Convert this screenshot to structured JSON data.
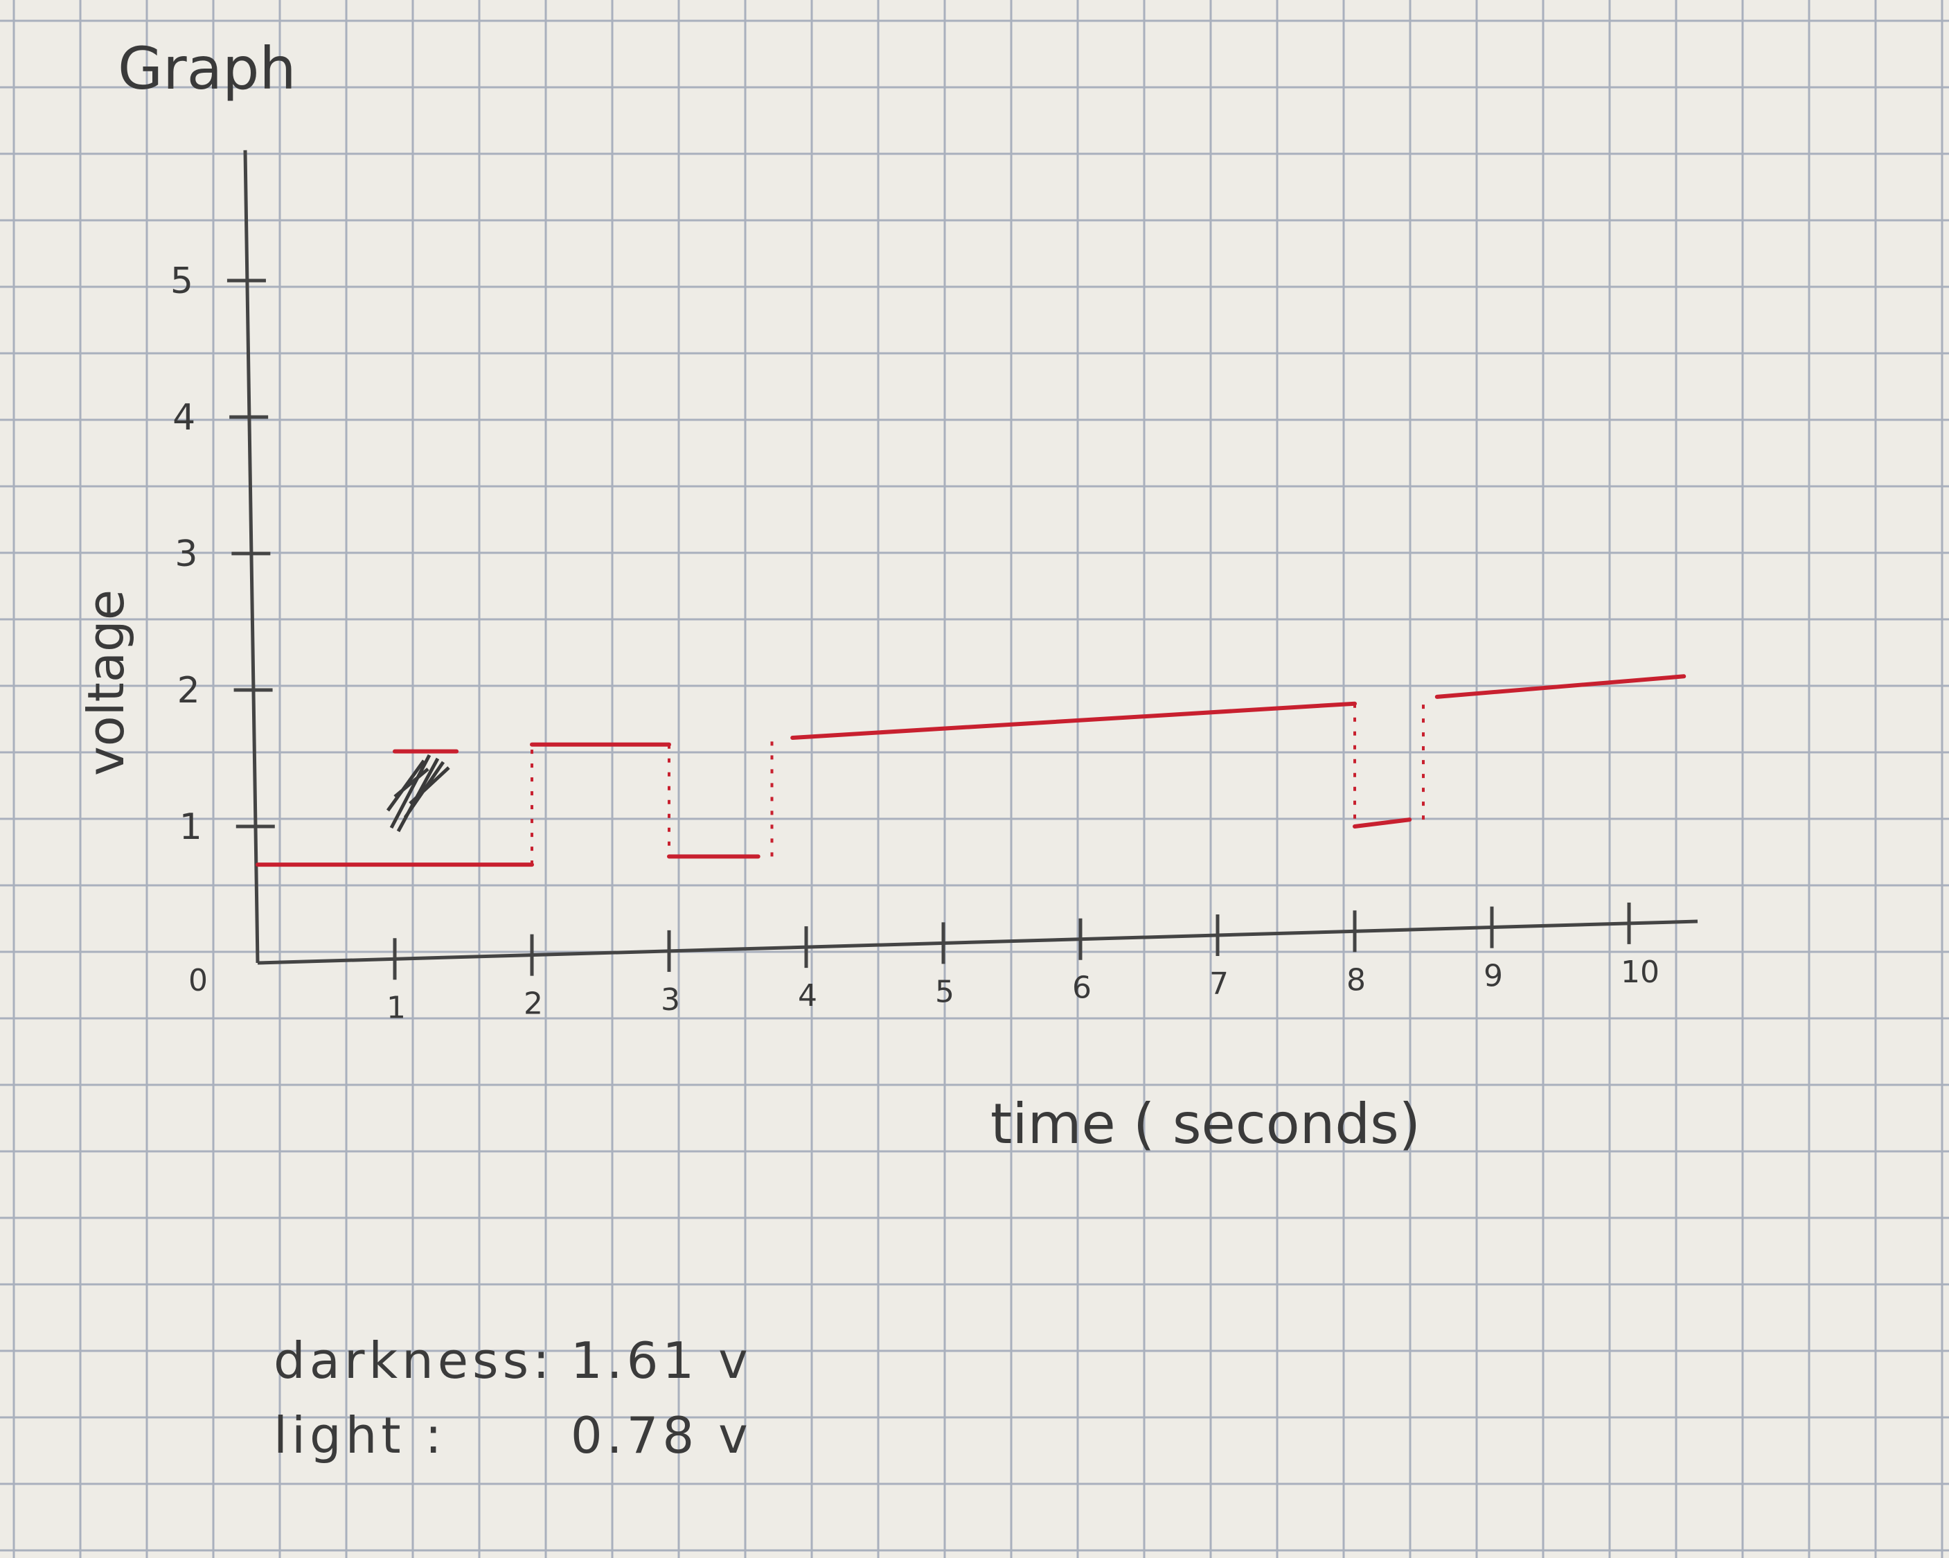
{
  "chart_data": {
    "type": "line",
    "title": "Graph",
    "xlabel": "time ( seconds)",
    "ylabel": "voltage",
    "x_ticks": [
      "0",
      "1",
      "2",
      "3",
      "4",
      "5",
      "6",
      "7",
      "8",
      "9",
      "10"
    ],
    "y_ticks": [
      "1",
      "2",
      "3",
      "4",
      "5"
    ],
    "xlim": [
      0,
      10.5
    ],
    "ylim": [
      0,
      5.6
    ],
    "grid": true,
    "series_color": "#c8202f",
    "segments": [
      {
        "x": [
          0,
          2
        ],
        "y": [
          0.72,
          0.72
        ]
      },
      {
        "x": [
          1,
          1.45
        ],
        "y": [
          1.55,
          1.55
        ]
      },
      {
        "x": [
          2,
          3
        ],
        "y": [
          1.6,
          1.6
        ]
      },
      {
        "x": [
          3,
          3.65
        ],
        "y": [
          0.78,
          0.78
        ]
      },
      {
        "x": [
          3.9,
          8
        ],
        "y": [
          1.65,
          1.9
        ]
      },
      {
        "x": [
          8,
          8.4
        ],
        "y": [
          1.0,
          1.05
        ]
      },
      {
        "x": [
          8.6,
          10.4
        ],
        "y": [
          1.95,
          2.1
        ]
      }
    ],
    "transitions": [
      {
        "x": 2,
        "y": [
          0.72,
          1.6
        ]
      },
      {
        "x": 3,
        "y": [
          1.6,
          0.78
        ]
      },
      {
        "x": 3.75,
        "y": [
          0.78,
          1.65
        ]
      },
      {
        "x": 8,
        "y": [
          1.9,
          1.0
        ]
      },
      {
        "x": 8.5,
        "y": [
          1.05,
          1.95
        ]
      }
    ]
  },
  "notes": [
    {
      "label": "darkness:",
      "value": "1.61 v"
    },
    {
      "label": "light :",
      "value": "0.78 v"
    }
  ]
}
